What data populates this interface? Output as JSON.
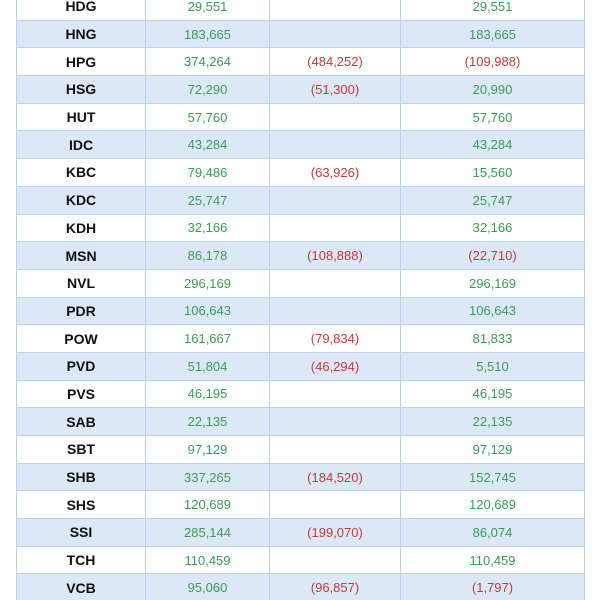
{
  "table": {
    "rows": [
      {
        "ticker": "HDG",
        "buy": "29,551",
        "sell": "",
        "net": "29,551",
        "net_negative": false
      },
      {
        "ticker": "HNG",
        "buy": "183,665",
        "sell": "",
        "net": "183,665",
        "net_negative": false
      },
      {
        "ticker": "HPG",
        "buy": "374,264",
        "sell": "(484,252)",
        "net": "(109,988)",
        "net_negative": true
      },
      {
        "ticker": "HSG",
        "buy": "72,290",
        "sell": "(51,300)",
        "net": "20,990",
        "net_negative": false
      },
      {
        "ticker": "HUT",
        "buy": "57,760",
        "sell": "",
        "net": "57,760",
        "net_negative": false
      },
      {
        "ticker": "IDC",
        "buy": "43,284",
        "sell": "",
        "net": "43,284",
        "net_negative": false
      },
      {
        "ticker": "KBC",
        "buy": "79,486",
        "sell": "(63,926)",
        "net": "15,560",
        "net_negative": false
      },
      {
        "ticker": "KDC",
        "buy": "25,747",
        "sell": "",
        "net": "25,747",
        "net_negative": false
      },
      {
        "ticker": "KDH",
        "buy": "32,166",
        "sell": "",
        "net": "32,166",
        "net_negative": false
      },
      {
        "ticker": "MSN",
        "buy": "86,178",
        "sell": "(108,888)",
        "net": "(22,710)",
        "net_negative": true
      },
      {
        "ticker": "NVL",
        "buy": "296,169",
        "sell": "",
        "net": "296,169",
        "net_negative": false
      },
      {
        "ticker": "PDR",
        "buy": "106,643",
        "sell": "",
        "net": "106,643",
        "net_negative": false
      },
      {
        "ticker": "POW",
        "buy": "161,667",
        "sell": "(79,834)",
        "net": "81,833",
        "net_negative": false
      },
      {
        "ticker": "PVD",
        "buy": "51,804",
        "sell": "(46,294)",
        "net": "5,510",
        "net_negative": false
      },
      {
        "ticker": "PVS",
        "buy": "46,195",
        "sell": "",
        "net": "46,195",
        "net_negative": false
      },
      {
        "ticker": "SAB",
        "buy": "22,135",
        "sell": "",
        "net": "22,135",
        "net_negative": false
      },
      {
        "ticker": "SBT",
        "buy": "97,129",
        "sell": "",
        "net": "97,129",
        "net_negative": false
      },
      {
        "ticker": "SHB",
        "buy": "337,265",
        "sell": "(184,520)",
        "net": "152,745",
        "net_negative": false
      },
      {
        "ticker": "SHS",
        "buy": "120,689",
        "sell": "",
        "net": "120,689",
        "net_negative": false
      },
      {
        "ticker": "SSI",
        "buy": "285,144",
        "sell": "(199,070)",
        "net": "86,074",
        "net_negative": false
      },
      {
        "ticker": "TCH",
        "buy": "110,459",
        "sell": "",
        "net": "110,459",
        "net_negative": false
      },
      {
        "ticker": "VCB",
        "buy": "95,060",
        "sell": "(96,857)",
        "net": "(1,797)",
        "net_negative": true
      }
    ]
  },
  "colors": {
    "positive": "#3a9b57",
    "negative": "#c13b3b",
    "row_stripe": "#dce8f6",
    "border": "#bcd0e6"
  }
}
